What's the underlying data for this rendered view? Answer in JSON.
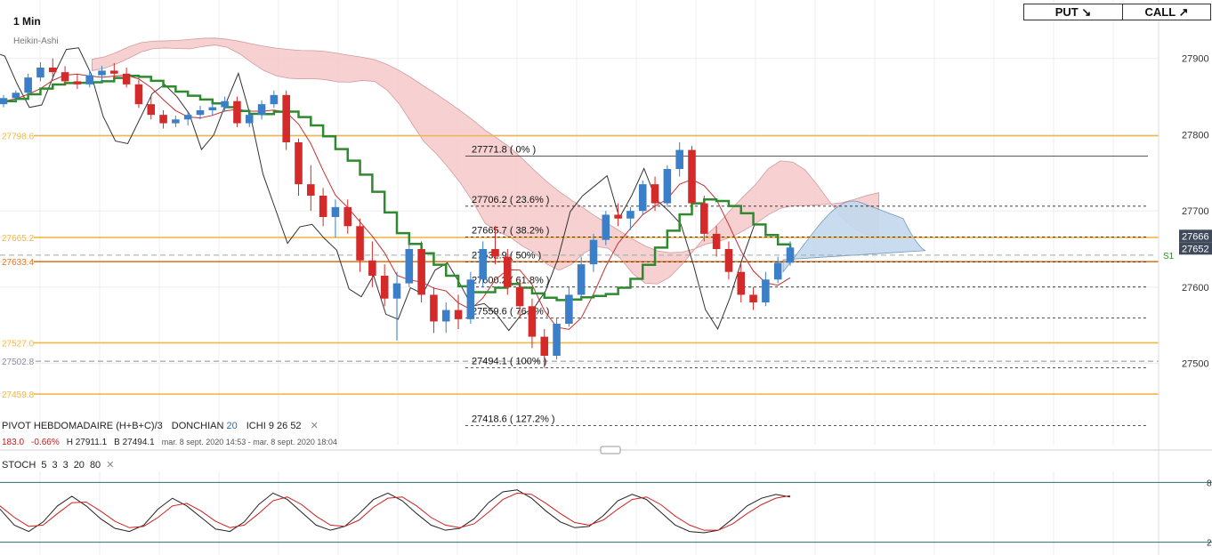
{
  "header": {
    "timeframe": "1 Min",
    "chart_style": "Heikin-Ashi",
    "put_label": "PUT ↘",
    "call_label": "CALL ↗"
  },
  "indicators": {
    "pivot": {
      "name": "PIVOT",
      "type": "HEBDOMADAIRE",
      "formula": "(H+B+C)/3"
    },
    "donchian": {
      "name": "DONCHIAN",
      "period": "20"
    },
    "ichi": {
      "name": "ICHI",
      "p1": "9",
      "p2": "26",
      "p3": "52"
    },
    "stoch": {
      "name": "STOCH",
      "p1": "5",
      "p2": "3",
      "p3": "3",
      "p4": "20",
      "p5": "80"
    },
    "close_icon": "close-icon"
  },
  "ohlc_bar": {
    "last": "183.0",
    "change": "-0.66%",
    "high": "H 27911.1",
    "low": "B 27494.1",
    "range": "mar. 8 sept. 2020 14:53 - mar. 8 sept. 2020 18:04"
  },
  "price_axis": {
    "ticks": [
      "27900",
      "27800",
      "27700",
      "27600",
      "27500"
    ],
    "current_badges": [
      "27666",
      "27652"
    ],
    "s1_label": "S1"
  },
  "stoch_axis": {
    "ticks": [
      "8",
      "2"
    ]
  },
  "level_labels": [
    {
      "value": "27798.6",
      "color": "#f0b84a"
    },
    {
      "value": "27665.2",
      "color": "#f0b84a"
    },
    {
      "value": "27633.4",
      "color": "#e07b28"
    },
    {
      "value": "27527.0",
      "color": "#f0b84a"
    },
    {
      "value": "27502.8",
      "color": "#8a8aa0"
    },
    {
      "value": "27459.8",
      "color": "#f0b84a"
    }
  ],
  "fibonacci": [
    {
      "price": 27771.8,
      "label": "27771.8 ( 0% )"
    },
    {
      "price": 27706.2,
      "label": "27706.2 ( 23.6% )"
    },
    {
      "price": 27665.7,
      "label": "27665.7 ( 38.2% )"
    },
    {
      "price": 27632.9,
      "label": "27632.9 ( 50% )"
    },
    {
      "price": 27600.2,
      "label": "27600.2 ( 61.8% )"
    },
    {
      "price": 27559.6,
      "label": "27559.6 ( 76.4% )"
    },
    {
      "price": 27494.1,
      "label": "27494.1 ( 100% )"
    },
    {
      "price": 27418.6,
      "label": "27418.6 ( 127.2% )"
    }
  ],
  "colors": {
    "bull": "#3a7fc8",
    "bear": "#d42a2a",
    "kijun": "#2f8a2f",
    "tenkan": "#c43030",
    "chikou": "#333333",
    "kumo_bear": "#f6caca",
    "kumo_bull": "#c4d9ee",
    "pivot_orange": "#f0b84a",
    "stoch_k": "#222222",
    "stoch_d": "#d02020"
  },
  "chart_data": {
    "type": "candlestick",
    "ylim": [
      27440,
      27930
    ],
    "pivot_levels": [
      27798.6,
      27665.2,
      27633.4,
      27527.0,
      27502.8,
      27459.8
    ],
    "current_price": [
      27666,
      27652
    ],
    "candles": [
      [
        27840,
        27852,
        27836,
        27848
      ],
      [
        27848,
        27858,
        27842,
        27855
      ],
      [
        27855,
        27880,
        27850,
        27875
      ],
      [
        27875,
        27895,
        27870,
        27888
      ],
      [
        27888,
        27900,
        27875,
        27882
      ],
      [
        27882,
        27890,
        27865,
        27870
      ],
      [
        27870,
        27880,
        27860,
        27866
      ],
      [
        27866,
        27885,
        27862,
        27878
      ],
      [
        27878,
        27890,
        27870,
        27884
      ],
      [
        27884,
        27894,
        27874,
        27880
      ],
      [
        27880,
        27888,
        27862,
        27866
      ],
      [
        27866,
        27872,
        27835,
        27840
      ],
      [
        27840,
        27850,
        27820,
        27826
      ],
      [
        27826,
        27832,
        27808,
        27815
      ],
      [
        27815,
        27825,
        27810,
        27820
      ],
      [
        27820,
        27830,
        27812,
        27826
      ],
      [
        27826,
        27838,
        27820,
        27832
      ],
      [
        27832,
        27842,
        27826,
        27836
      ],
      [
        27836,
        27850,
        27830,
        27844
      ],
      [
        27844,
        27850,
        27810,
        27815
      ],
      [
        27815,
        27830,
        27810,
        27826
      ],
      [
        27826,
        27845,
        27820,
        27840
      ],
      [
        27840,
        27858,
        27835,
        27852
      ],
      [
        27852,
        27858,
        27780,
        27790
      ],
      [
        27790,
        27795,
        27720,
        27735
      ],
      [
        27735,
        27760,
        27700,
        27720
      ],
      [
        27720,
        27730,
        27680,
        27692
      ],
      [
        27692,
        27715,
        27665,
        27705
      ],
      [
        27705,
        27715,
        27670,
        27680
      ],
      [
        27680,
        27690,
        27620,
        27635
      ],
      [
        27635,
        27660,
        27600,
        27615
      ],
      [
        27615,
        27630,
        27575,
        27585
      ],
      [
        27585,
        27620,
        27530,
        27605
      ],
      [
        27605,
        27660,
        27600,
        27650
      ],
      [
        27650,
        27660,
        27580,
        27590
      ],
      [
        27590,
        27600,
        27540,
        27555
      ],
      [
        27555,
        27580,
        27540,
        27570
      ],
      [
        27570,
        27590,
        27545,
        27558
      ],
      [
        27558,
        27620,
        27552,
        27610
      ],
      [
        27610,
        27660,
        27600,
        27650
      ],
      [
        27650,
        27680,
        27630,
        27640
      ],
      [
        27640,
        27650,
        27590,
        27600
      ],
      [
        27600,
        27610,
        27560,
        27575
      ],
      [
        27575,
        27585,
        27520,
        27535
      ],
      [
        27535,
        27545,
        27494,
        27510
      ],
      [
        27510,
        27560,
        27505,
        27552
      ],
      [
        27552,
        27600,
        27548,
        27590
      ],
      [
        27590,
        27640,
        27585,
        27630
      ],
      [
        27630,
        27670,
        27620,
        27662
      ],
      [
        27662,
        27700,
        27655,
        27695
      ],
      [
        27695,
        27710,
        27680,
        27690
      ],
      [
        27690,
        27705,
        27675,
        27700
      ],
      [
        27700,
        27740,
        27695,
        27735
      ],
      [
        27735,
        27745,
        27700,
        27710
      ],
      [
        27710,
        27760,
        27705,
        27755
      ],
      [
        27755,
        27790,
        27745,
        27780
      ],
      [
        27780,
        27785,
        27700,
        27710
      ],
      [
        27710,
        27720,
        27660,
        27670
      ],
      [
        27670,
        27680,
        27640,
        27650
      ],
      [
        27650,
        27660,
        27610,
        27620
      ],
      [
        27620,
        27630,
        27580,
        27590
      ],
      [
        27590,
        27600,
        27570,
        27580
      ],
      [
        27580,
        27620,
        27575,
        27610
      ],
      [
        27610,
        27640,
        27605,
        27632
      ],
      [
        27632,
        27660,
        27628,
        27652
      ]
    ],
    "stochastic": {
      "k": [
        55,
        30,
        20,
        35,
        60,
        75,
        60,
        40,
        25,
        20,
        30,
        55,
        72,
        60,
        42,
        24,
        20,
        35,
        62,
        80,
        70,
        50,
        30,
        22,
        28,
        48,
        70,
        80,
        68,
        48,
        30,
        22,
        25,
        40,
        65,
        82,
        85,
        72,
        52,
        35,
        26,
        28,
        45,
        68,
        78,
        70,
        50,
        30,
        20,
        18,
        22,
        40,
        60,
        72,
        78,
        74
      ],
      "d": [
        60,
        42,
        28,
        30,
        48,
        65,
        66,
        52,
        36,
        26,
        28,
        42,
        60,
        64,
        52,
        36,
        26,
        30,
        48,
        68,
        74,
        62,
        44,
        30,
        28,
        38,
        58,
        72,
        74,
        60,
        42,
        30,
        26,
        32,
        50,
        70,
        80,
        78,
        64,
        48,
        34,
        30,
        38,
        55,
        70,
        74,
        62,
        44,
        30,
        22,
        22,
        32,
        48,
        62,
        72,
        76
      ],
      "upper": 80,
      "lower": 20
    }
  }
}
